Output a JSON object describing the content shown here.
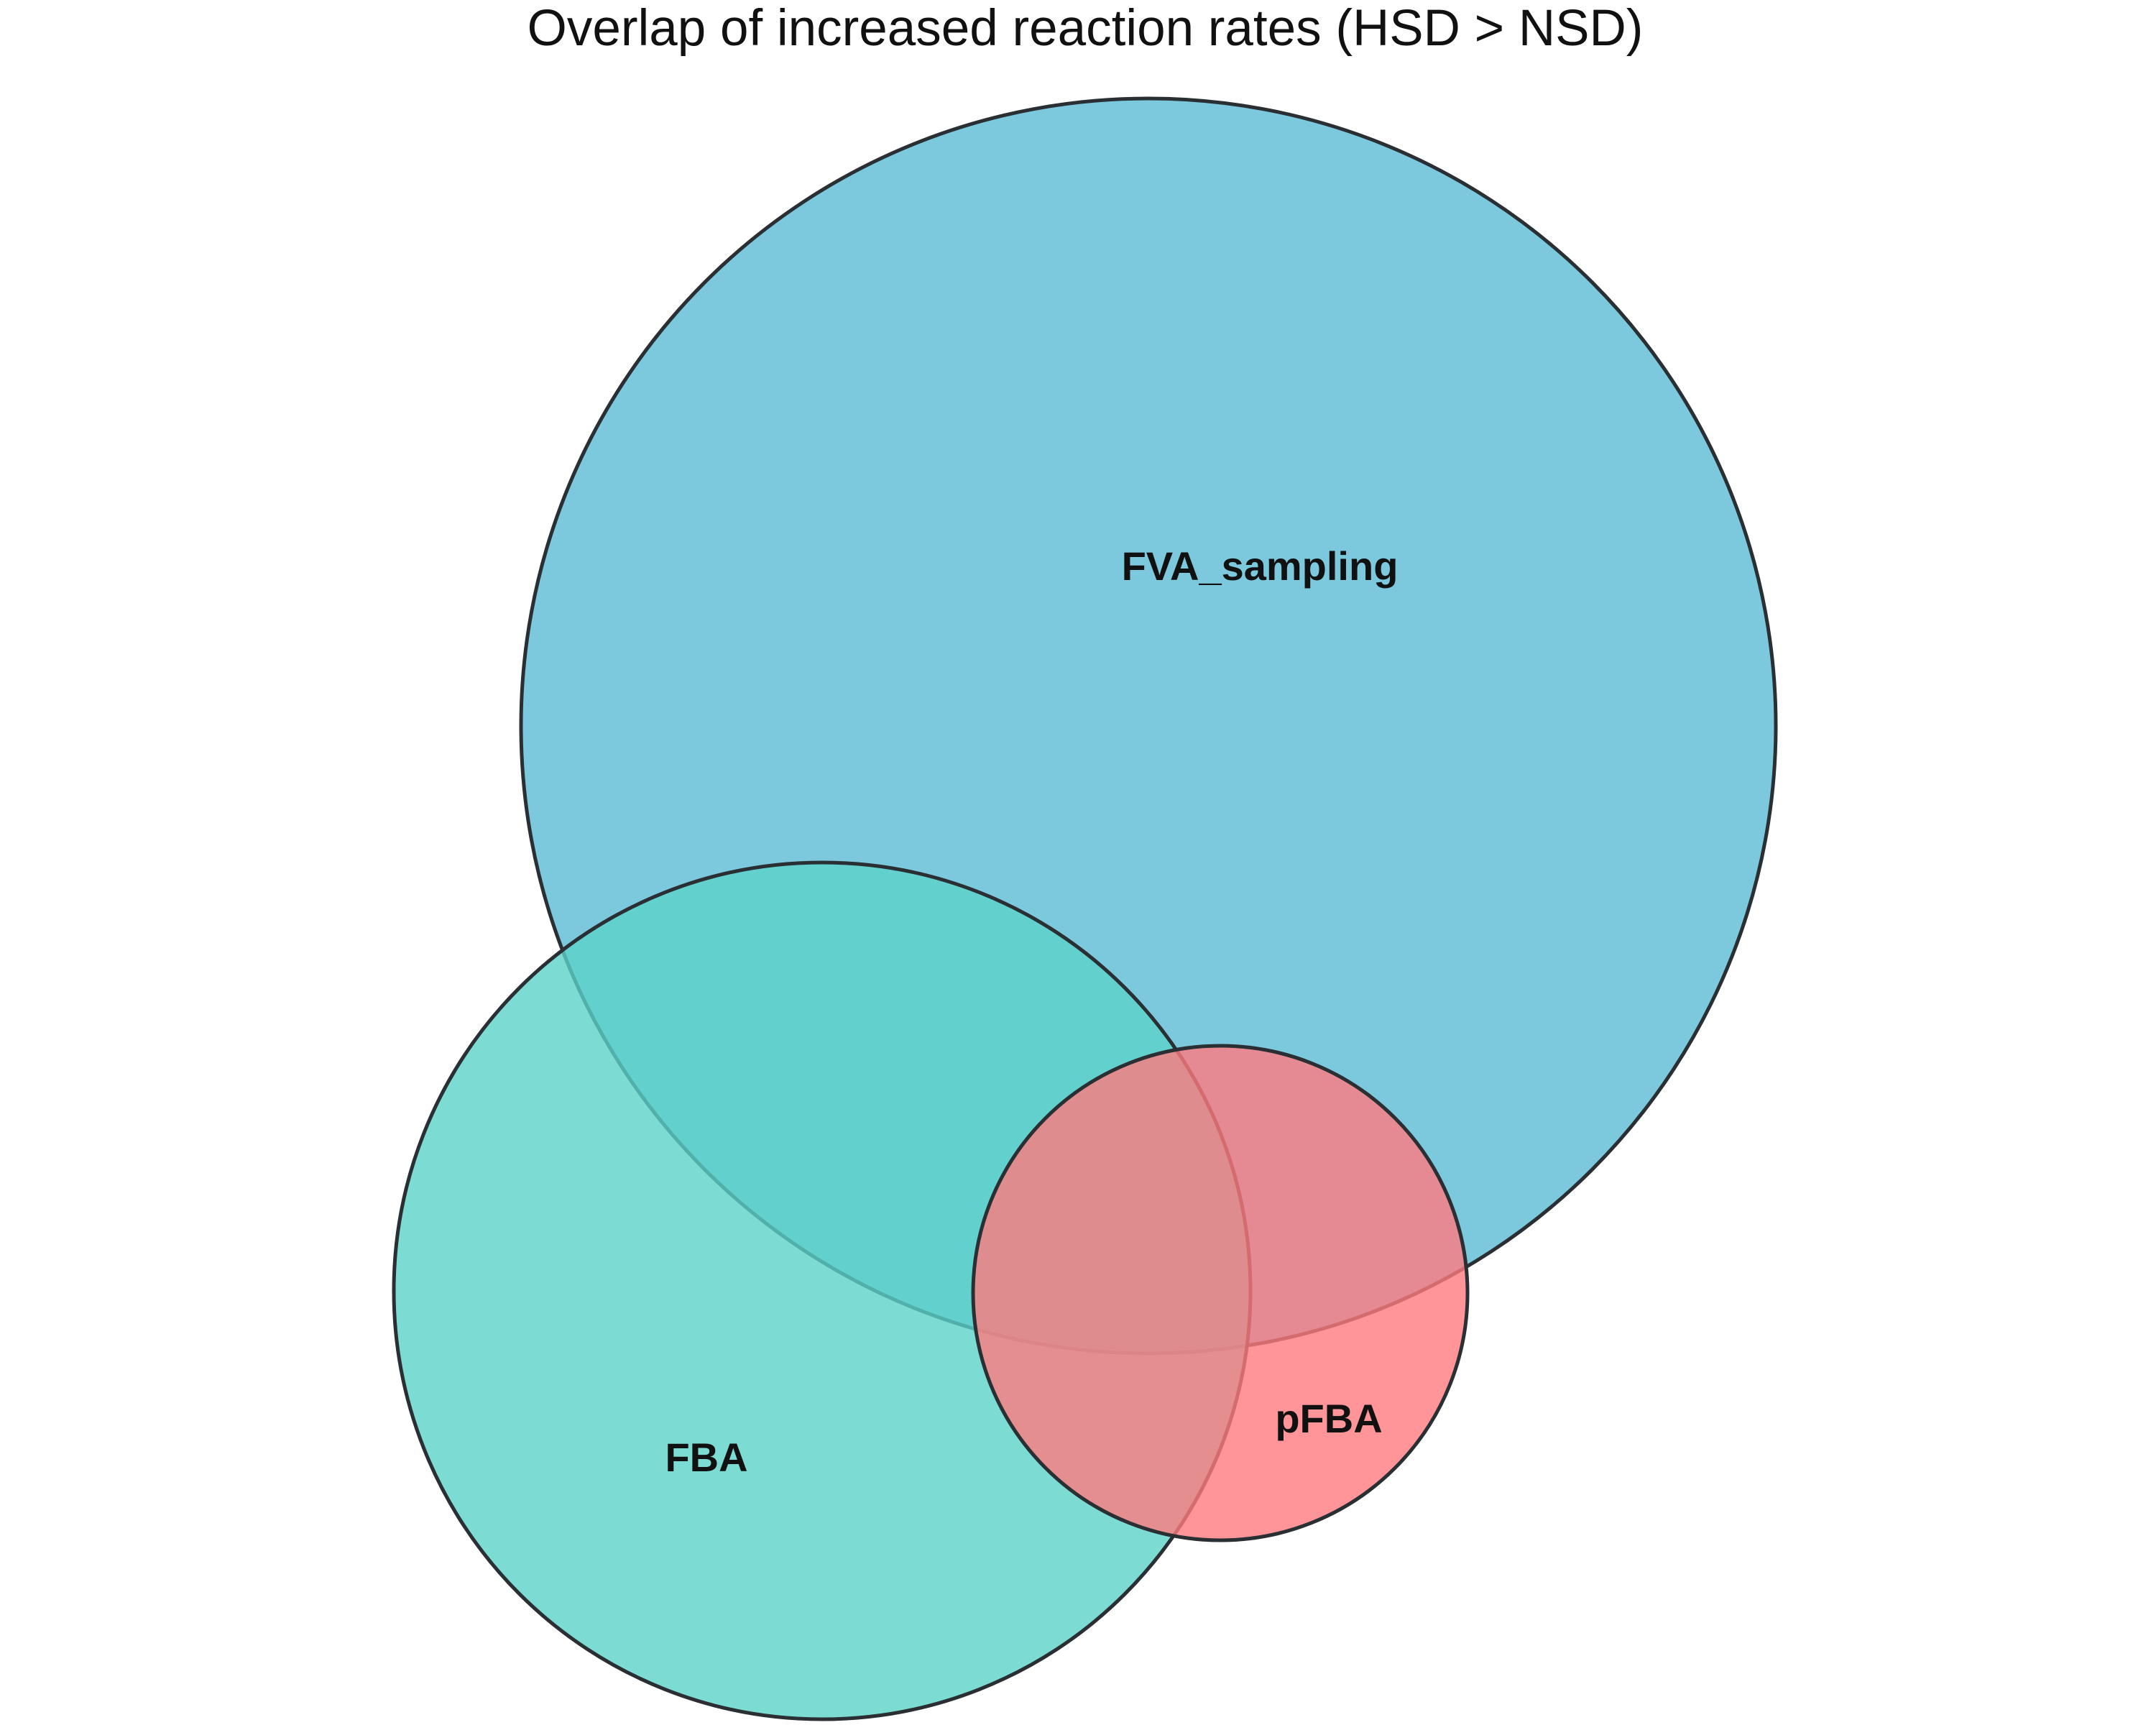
{
  "title": "Overlap of increased reaction rates (HSD > NSD)",
  "sets": [
    {
      "id": "fva",
      "label": "FVA_sampling",
      "color": "#5bbcd6"
    },
    {
      "id": "fba",
      "label": "FBA",
      "color": "#5bd2c8"
    },
    {
      "id": "pfba",
      "label": "pFBA",
      "color": "#ff7a7e"
    }
  ],
  "fill_opacity": 0.8,
  "outline_color": "#2a2f33"
}
